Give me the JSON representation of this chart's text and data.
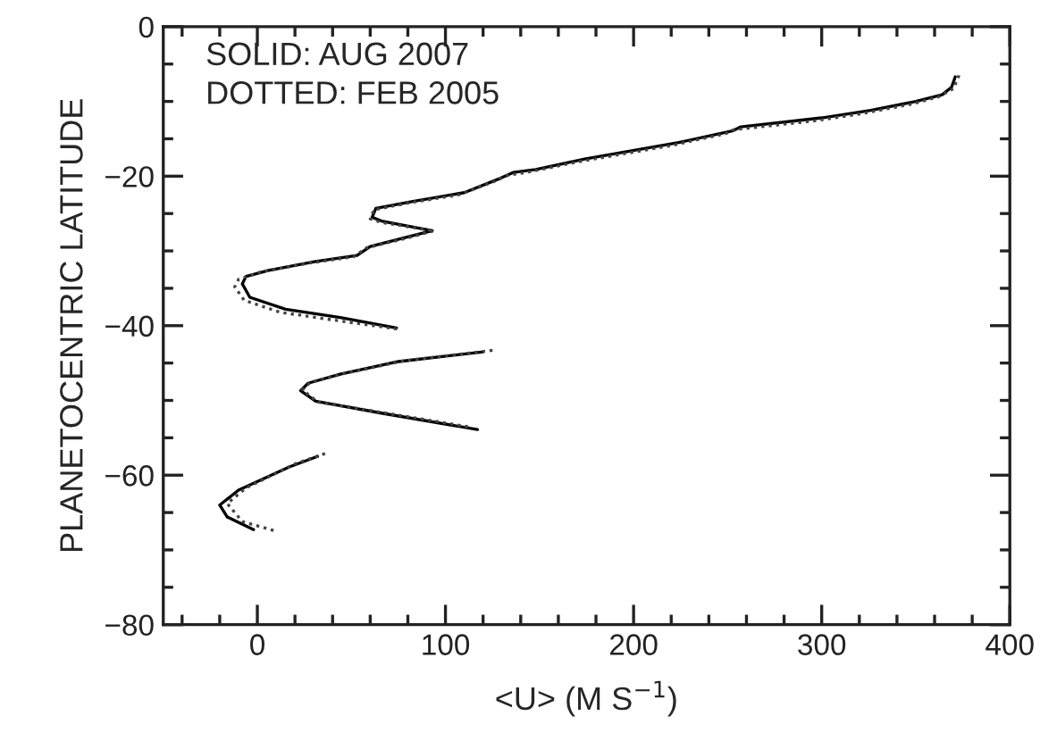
{
  "chart_data": {
    "type": "line",
    "xlabel": "<U> (M S$^{−1}$)",
    "ylabel": "PLANETOCENTRIC LATITUDE",
    "annotations": [
      "SOLID: AUG 2007",
      "DOTTED: FEB 2005"
    ],
    "xlim": [
      -50,
      400
    ],
    "xticks": [
      0,
      100,
      200,
      300,
      400
    ],
    "ylim": [
      -80,
      0
    ],
    "yticks": [
      -80,
      -60,
      -40,
      -20,
      0
    ],
    "grid": false,
    "series": [
      {
        "color": "#000000",
        "line_style": "solid",
        "x": [
          371,
          369,
          364,
          350,
          326,
          300,
          257,
          253,
          224,
          174,
          148,
          136,
          129,
          110,
          82,
          63,
          61,
          66,
          93,
          79,
          60,
          53,
          31,
          6,
          -6,
          -8,
          -4,
          15,
          44,
          74,
          null,
          120,
          75,
          44,
          27,
          23,
          31,
          66,
          117,
          null,
          32,
          17,
          -10,
          -20,
          -16,
          -2
        ],
        "values": [
          -6.7,
          -8.1,
          -9.1,
          -10,
          -11.2,
          -12.2,
          -13.4,
          -13.9,
          -15.5,
          -17.7,
          -19.1,
          -19.5,
          -20.3,
          -22.2,
          -23.4,
          -24.3,
          -25.5,
          -26,
          -27.3,
          -28.2,
          -29.4,
          -30.6,
          -31.4,
          -32.6,
          -33.4,
          -34.4,
          -36.2,
          -37.8,
          -38.9,
          -40.3,
          null,
          -43.5,
          -44.8,
          -46.5,
          -47.7,
          -48.7,
          -50.1,
          -51.7,
          -53.9,
          null,
          -57.5,
          -58.9,
          -62,
          -64,
          -65.6,
          -67.3
        ]
      },
      {
        "color": "#444444",
        "line_style": "dotted",
        "x": [
          373,
          370,
          362,
          347,
          322,
          296,
          253,
          249,
          220,
          170,
          145,
          133,
          126,
          107,
          80,
          62,
          60,
          66,
          94,
          79,
          58,
          51,
          28,
          2,
          -10,
          -12,
          -7,
          12,
          42,
          76,
          null,
          125,
          78,
          46,
          28,
          24,
          32,
          66,
          114,
          null,
          36,
          20,
          -6,
          -16,
          -8,
          10
        ],
        "values": [
          -6.5,
          -8.3,
          -9.4,
          -10.4,
          -11.6,
          -12.6,
          -13.8,
          -14.3,
          -15.9,
          -18.1,
          -19.4,
          -19.9,
          -20.7,
          -22.5,
          -23.6,
          -24.5,
          -25.7,
          -26.2,
          -27.3,
          -28.3,
          -29.6,
          -30.8,
          -31.6,
          -32.8,
          -33.8,
          -34.8,
          -36.6,
          -38.2,
          -39.3,
          -40.5,
          null,
          -43.3,
          -44.7,
          -46.4,
          -47.6,
          -48.6,
          -50.2,
          -51.6,
          -53.6,
          null,
          -57.1,
          -58.5,
          -61.7,
          -63.8,
          -66.2,
          -67.5
        ]
      }
    ]
  }
}
